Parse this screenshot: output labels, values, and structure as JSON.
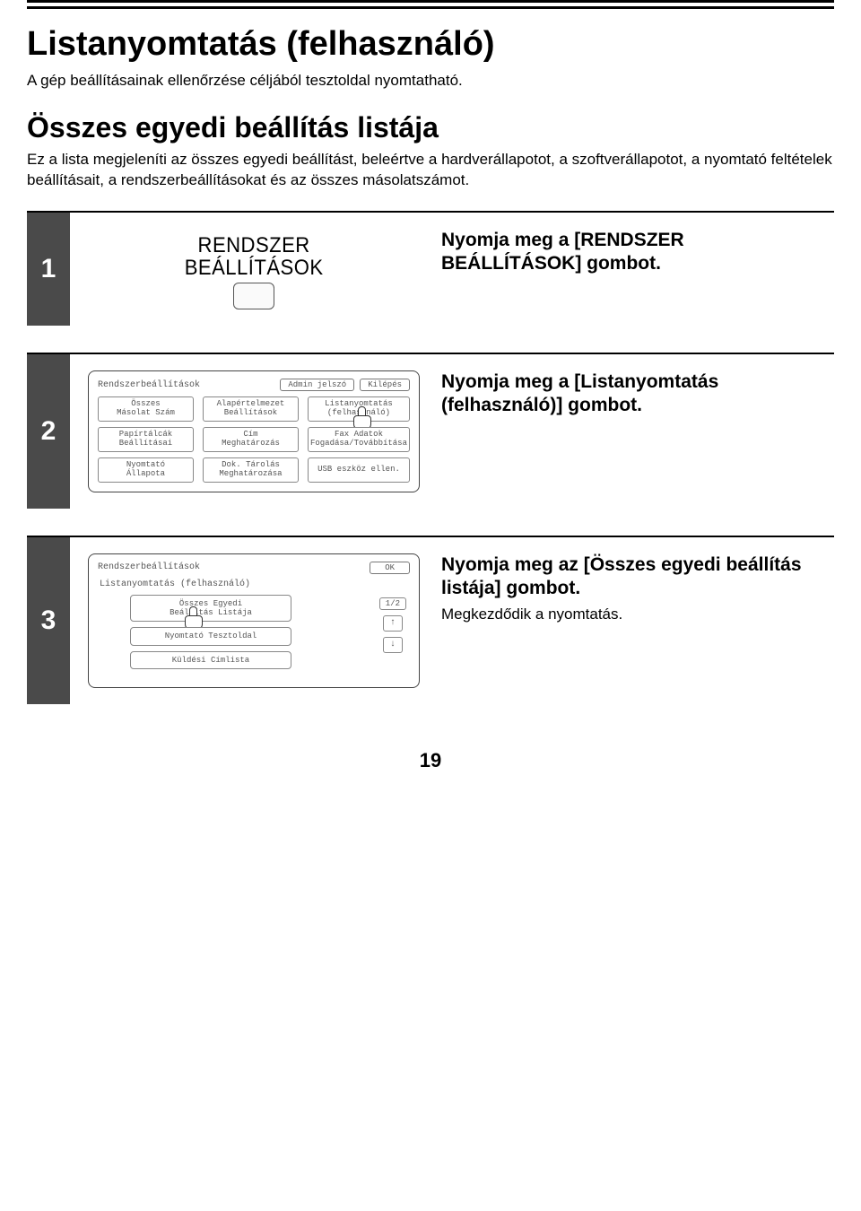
{
  "page": {
    "title": "Listanyomtatás (felhasználó)",
    "intro": "A gép beállításainak ellenőrzése céljából tesztoldal nyomtatható.",
    "sectionTitle": "Összes egyedi beállítás listája",
    "sectionIntro": "Ez a lista megjeleníti az összes egyedi beállítást, beleértve a hardverállapotot, a szoftverállapotot, a nyomtató feltételek beállításait, a rendszerbeállításokat és az összes másolatszámot.",
    "pageNumber": "19"
  },
  "step1": {
    "num": "1",
    "keyLabel1": "RENDSZER",
    "keyLabel2": "BEÁLLÍTÁSOK",
    "instruction": "Nyomja meg a [RENDSZER BEÁLLÍTÁSOK] gombot."
  },
  "step2": {
    "num": "2",
    "panelTitle": "Rendszerbeállítások",
    "adminBtn": "Admin jelszó",
    "exitBtn": "Kilépés",
    "grid": {
      "r0c0": "Összes\nMásolat Szám",
      "r0c1": "Alapértelmezet\nBeállítások",
      "r0c2": "Listanyomtatás\n(felhasználó)",
      "r1c0": "Papírtálcák\nBeállításai",
      "r1c1": "Cím\nMeghatározás",
      "r1c2": "Fax Adatok\nFogadása/Továbbítása",
      "r2c0": "Nyomtató\nÁllapota",
      "r2c1": "Dok. Tárolás\nMeghatározása",
      "r2c2": "USB eszköz ellen."
    },
    "instruction": "Nyomja meg a [Listanyomtatás (felhasználó)] gombot."
  },
  "step3": {
    "num": "3",
    "panelTitle": "Rendszerbeállítások",
    "panelSub": "Listanyomtatás (felhasználó)",
    "okBtn": "OK",
    "pageInd": "1/2",
    "arrowUp": "↑",
    "arrowDown": "↓",
    "btn1": "Összes Egyedi\nBeállítás Listája",
    "btn2": "Nyomtató Tesztoldal",
    "btn3": "Küldési Címlista",
    "instructionHeading": "Nyomja meg az [Összes egyedi beállítás listája] gombot.",
    "instructionSub": "Megkezdődik a nyomtatás."
  }
}
